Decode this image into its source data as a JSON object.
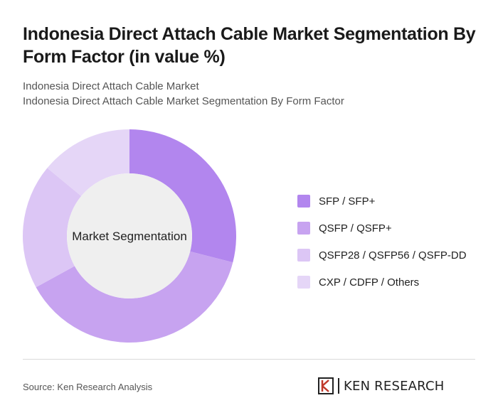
{
  "header": {
    "title": "Indonesia Direct Attach Cable Market Segmentation By Form Factor (in value %)",
    "subtitle_line1": "Indonesia Direct Attach Cable Market",
    "subtitle_line2": "Indonesia Direct Attach Cable Market Segmentation By Form Factor"
  },
  "chart_data": {
    "type": "pie",
    "donut": true,
    "center_label": "Market Segmentation",
    "categories": [
      "SFP / SFP+",
      "QSFP / QSFP+",
      "QSFP28 / QSFP56 / QSFP-DD",
      "CXP / CDFP / Others"
    ],
    "values": [
      29,
      38,
      19,
      14
    ],
    "colors": [
      "#b286ee",
      "#c7a3f0",
      "#dcc6f5",
      "#e5d6f7"
    ],
    "legend_position": "right"
  },
  "footer": {
    "source": "Source: Ken Research Analysis",
    "brand_name": "KEN RESEARCH"
  }
}
